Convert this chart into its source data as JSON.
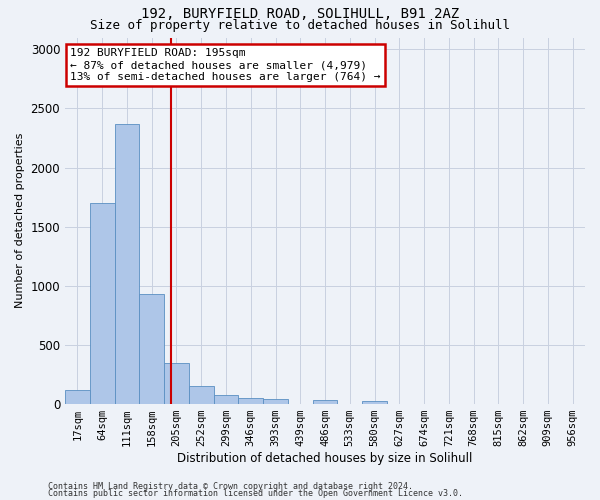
{
  "title_line1": "192, BURYFIELD ROAD, SOLIHULL, B91 2AZ",
  "title_line2": "Size of property relative to detached houses in Solihull",
  "xlabel": "Distribution of detached houses by size in Solihull",
  "ylabel": "Number of detached properties",
  "bin_labels": [
    "17sqm",
    "64sqm",
    "111sqm",
    "158sqm",
    "205sqm",
    "252sqm",
    "299sqm",
    "346sqm",
    "393sqm",
    "439sqm",
    "486sqm",
    "533sqm",
    "580sqm",
    "627sqm",
    "674sqm",
    "721sqm",
    "768sqm",
    "815sqm",
    "862sqm",
    "909sqm",
    "956sqm"
  ],
  "bar_values": [
    115,
    1700,
    2370,
    930,
    345,
    155,
    80,
    55,
    40,
    0,
    35,
    0,
    30,
    0,
    0,
    0,
    0,
    0,
    0,
    0,
    0
  ],
  "bar_color": "#aec6e8",
  "bar_edge_color": "#5a8fc2",
  "annotation_line1": "192 BURYFIELD ROAD: 195sqm",
  "annotation_line2": "← 87% of detached houses are smaller (4,979)",
  "annotation_line3": "13% of semi-detached houses are larger (764) →",
  "annotation_box_color": "#ffffff",
  "annotation_box_edge": "#cc0000",
  "vline_color": "#cc0000",
  "vline_x_data": 3.79,
  "ylim": [
    0,
    3100
  ],
  "yticks": [
    0,
    500,
    1000,
    1500,
    2000,
    2500,
    3000
  ],
  "grid_color": "#c8d0e0",
  "background_color": "#eef2f8",
  "footer_line1": "Contains HM Land Registry data © Crown copyright and database right 2024.",
  "footer_line2": "Contains public sector information licensed under the Open Government Licence v3.0.",
  "title1_fontsize": 10,
  "title2_fontsize": 9,
  "ylabel_fontsize": 8,
  "xlabel_fontsize": 8.5,
  "tick_fontsize": 7.5,
  "footer_fontsize": 6,
  "annot_fontsize": 8
}
